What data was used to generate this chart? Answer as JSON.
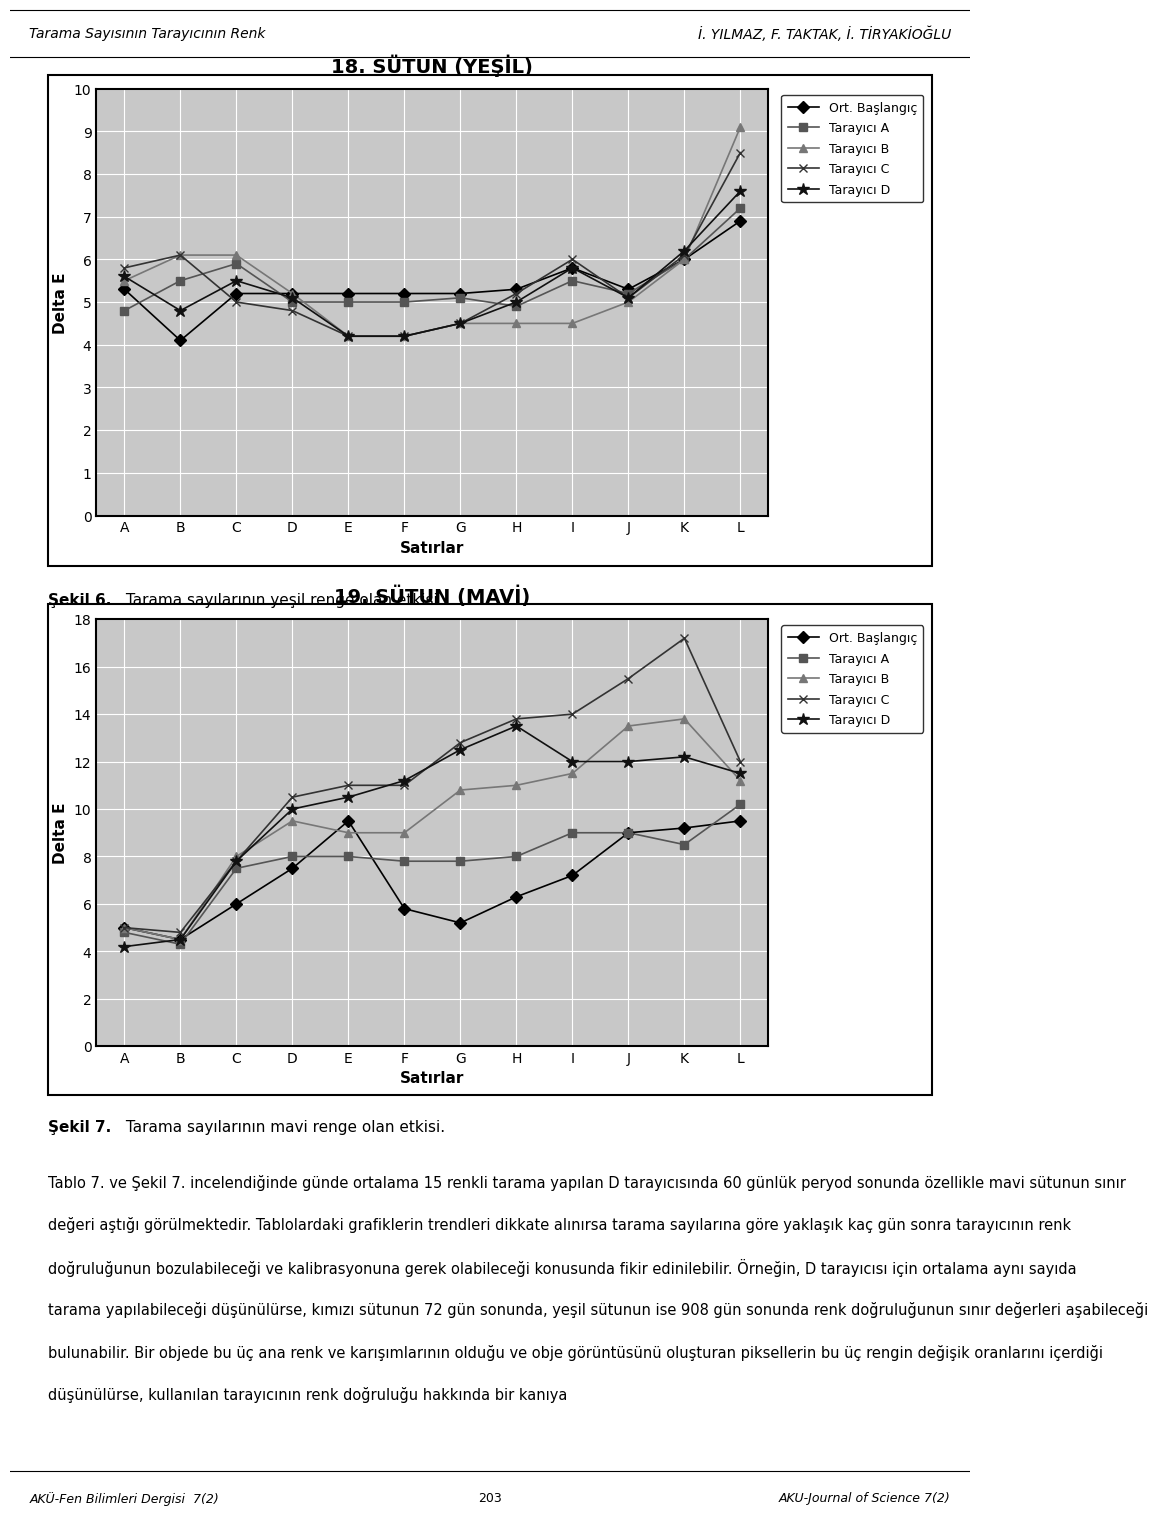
{
  "chart1": {
    "title": "18. SÜTUN (YEŞİL)",
    "xlabel": "Satırlar",
    "ylabel": "Delta E",
    "ylim": [
      0,
      10
    ],
    "yticks": [
      0,
      1,
      2,
      3,
      4,
      5,
      6,
      7,
      8,
      9,
      10
    ],
    "categories": [
      "A",
      "B",
      "C",
      "D",
      "E",
      "F",
      "G",
      "H",
      "I",
      "J",
      "K",
      "L"
    ],
    "series": {
      "Ort. Başlangıç": [
        5.3,
        4.1,
        5.2,
        5.2,
        5.2,
        5.2,
        5.2,
        5.3,
        5.8,
        5.3,
        6.0,
        6.9
      ],
      "Tarayıcı A": [
        4.8,
        5.5,
        5.9,
        5.0,
        5.0,
        5.0,
        5.1,
        4.9,
        5.5,
        5.2,
        6.0,
        7.2
      ],
      "Tarayıcı B": [
        5.5,
        6.1,
        6.1,
        5.2,
        4.2,
        4.2,
        4.5,
        4.5,
        4.5,
        5.0,
        6.0,
        9.1
      ],
      "Tarayıcı C": [
        5.8,
        6.1,
        5.0,
        4.8,
        4.2,
        4.2,
        4.5,
        5.2,
        6.0,
        5.1,
        6.1,
        8.5
      ],
      "Tarayıcı D": [
        5.6,
        4.8,
        5.5,
        5.1,
        4.2,
        4.2,
        4.5,
        5.0,
        5.8,
        5.1,
        6.2,
        7.6
      ]
    },
    "markers": {
      "Ort. Başlangıç": "D",
      "Tarayıcı A": "s",
      "Tarayıcı B": "^",
      "Tarayıcı C": "x",
      "Tarayıcı D": "*"
    },
    "colors": {
      "Ort. Başlangıç": "#000000",
      "Tarayıcı A": "#555555",
      "Tarayıcı B": "#777777",
      "Tarayıcı C": "#333333",
      "Tarayıcı D": "#111111"
    }
  },
  "chart2": {
    "title": "19. SÜTUN (MAVİ)",
    "xlabel": "Satırlar",
    "ylabel": "Delta E",
    "ylim": [
      0,
      18
    ],
    "yticks": [
      0,
      2,
      4,
      6,
      8,
      10,
      12,
      14,
      16,
      18
    ],
    "categories": [
      "A",
      "B",
      "C",
      "D",
      "E",
      "F",
      "G",
      "H",
      "I",
      "J",
      "K",
      "L"
    ],
    "series": {
      "Ort. Başlangıç": [
        5.0,
        4.5,
        6.0,
        7.5,
        9.5,
        5.8,
        5.2,
        6.3,
        7.2,
        9.0,
        9.2,
        9.5
      ],
      "Tarayıcı A": [
        4.8,
        4.3,
        7.5,
        8.0,
        8.0,
        7.8,
        7.8,
        8.0,
        9.0,
        9.0,
        8.5,
        10.2
      ],
      "Tarayıcı B": [
        5.0,
        4.5,
        8.0,
        9.5,
        9.0,
        9.0,
        10.8,
        11.0,
        11.5,
        13.5,
        13.8,
        11.2
      ],
      "Tarayıcı C": [
        5.0,
        4.8,
        7.8,
        10.5,
        11.0,
        11.0,
        12.8,
        13.8,
        14.0,
        15.5,
        17.2,
        12.0
      ],
      "Tarayıcı D": [
        4.2,
        4.5,
        7.8,
        10.0,
        10.5,
        11.2,
        12.5,
        13.5,
        12.0,
        12.0,
        12.2,
        11.5
      ]
    },
    "markers": {
      "Ort. Başlangıç": "D",
      "Tarayıcı A": "s",
      "Tarayıcı B": "^",
      "Tarayıcı C": "x",
      "Tarayıcı D": "*"
    },
    "colors": {
      "Ort. Başlangıç": "#000000",
      "Tarayıcı A": "#555555",
      "Tarayıcı B": "#777777",
      "Tarayıcı C": "#333333",
      "Tarayıcı D": "#111111"
    }
  },
  "header_left": "Tarama Sayısının Tarayıcının Renk",
  "header_right": "İ. YILMAZ, F. TAKTAK, İ. TİRYAKİOĞLU",
  "caption1_bold": "Şekil 6.",
  "caption1_normal": " Tarama sayılarının yeşil renge olan etkisi.",
  "caption2_bold": "Şekil 7.",
  "caption2_normal": " Tarama sayılarının mavi renge olan etkisi.",
  "body_lines": [
    "Tablo 7. ve Şekil 7. incelendiğinde günde ortalama 15 renkli tarama yapılan D tarayıcısında 60 günlük peryod sonunda özellikle mavi sütunun sınır",
    "değeri aştığı görülmektedir. Tablolardaki grafiklerin trendleri dikkate alınırsa tarama sayılarına göre yaklaşık kaç gün sonra tarayıcının renk",
    "doğruluğunun bozulabileceği ve kalibrasyonuna gerek olabileceği konusunda fikir edinilebilir. Örneğin, D tarayıcısı için ortalama aynı sayıda",
    "tarama yapılabileceği düşünülürse, kımızı sütunun 72 gün sonunda, yeşil sütunun ise 908 gün sonunda renk doğruluğunun sınır değerleri aşabileceği",
    "bulunabilir. Bir objede bu üç ana renk ve karışımlarının olduğu ve obje görüntüsünü oluşturan piksellerin bu üç rengin değişik oranlarını içerdiği",
    "düşünülürse, kullanılan tarayıcının renk doğruluğu hakkında bir kanıya"
  ],
  "page_footer_left": "AKÜ-Fen Bilimleri Dergisi  7(2)",
  "page_footer_center": "203",
  "page_footer_right": "AKU-Journal of Science 7(2)"
}
